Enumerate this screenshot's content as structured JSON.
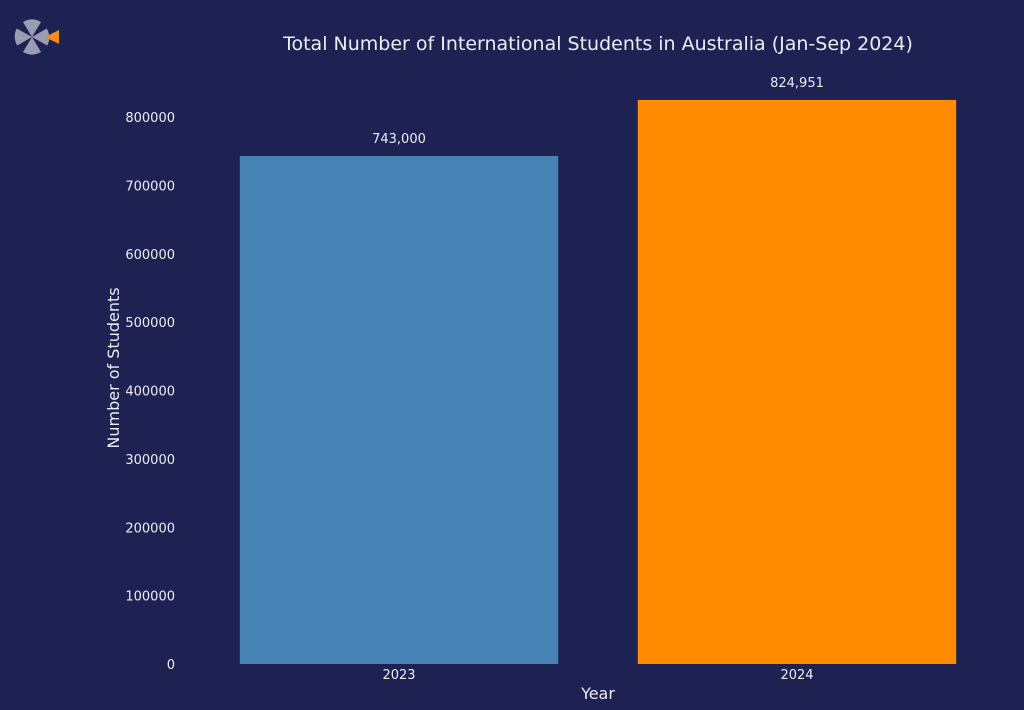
{
  "colors": {
    "background": "#1d2252",
    "text": "#ecedf3",
    "logo_gray": "#9a9cb4",
    "logo_accent": "#f58a1f"
  },
  "logo": {
    "icon": "pinwheel-logo-icon"
  },
  "chart_data": {
    "type": "bar",
    "title": "Total Number of International Students in Australia (Jan-Sep 2024)",
    "xlabel": "Year",
    "ylabel": "Number of Students",
    "categories": [
      "2023",
      "2024"
    ],
    "values": [
      743000,
      824951
    ],
    "data_labels": [
      "743,000",
      "824,951"
    ],
    "bar_colors": [
      "#4682b4",
      "#ff8c00"
    ],
    "ylim": [
      0,
      800000
    ],
    "yticks": [
      0,
      100000,
      200000,
      300000,
      400000,
      500000,
      600000,
      700000,
      800000
    ],
    "ytick_labels": [
      "0",
      "100000",
      "200000",
      "300000",
      "400000",
      "500000",
      "600000",
      "700000",
      "800000"
    ],
    "grid": false,
    "legend": false
  }
}
